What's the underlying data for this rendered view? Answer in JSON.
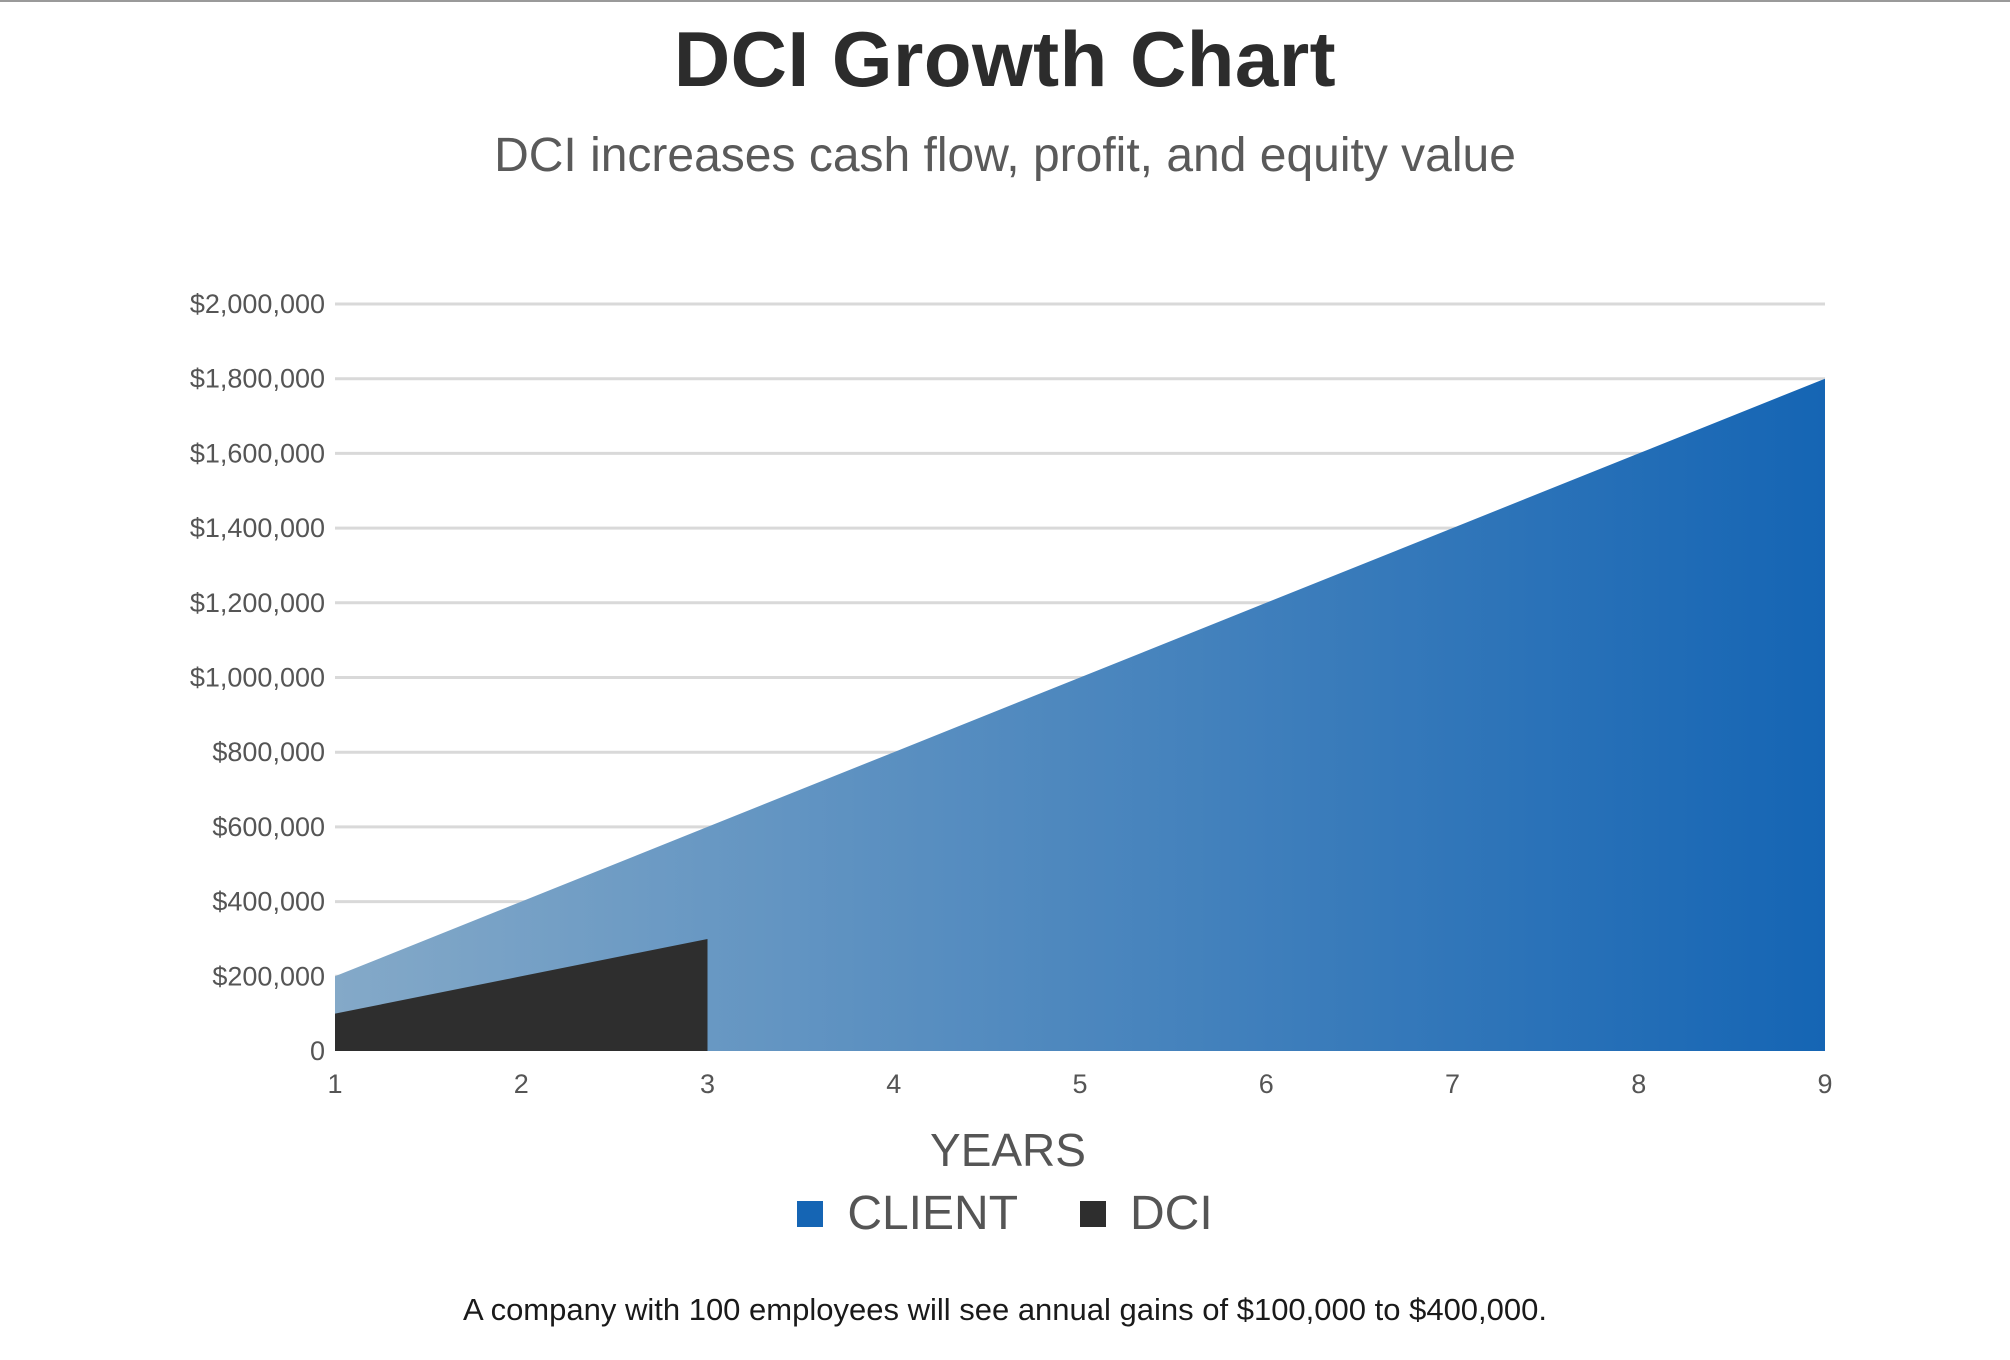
{
  "chart_data": {
    "type": "area",
    "title": "DCI Growth Chart",
    "subtitle": "DCI increases cash flow, profit, and equity value",
    "xlabel": "YEARS",
    "ylabel": "",
    "x": [
      1,
      2,
      3,
      4,
      5,
      6,
      7,
      8,
      9
    ],
    "ylim": [
      0,
      2000000
    ],
    "yticks": [
      0,
      200000,
      400000,
      600000,
      800000,
      1000000,
      1200000,
      1400000,
      1600000,
      1800000,
      2000000
    ],
    "ytick_labels": [
      "0",
      "$200,000",
      "$400,000",
      "$600,000",
      "$800,000",
      "$1,000,000",
      "$1,200,000",
      "$1,400,000",
      "$1,600,000",
      "$1,800,000",
      "$2,000,000"
    ],
    "xtick_labels": [
      "1",
      "2",
      "3",
      "4",
      "5",
      "6",
      "7",
      "8",
      "9"
    ],
    "grid": true,
    "legend_position": "bottom-center",
    "series": [
      {
        "name": "CLIENT",
        "color": "#1565b4",
        "gradient_start_color": "#84a9c8",
        "gradient_end_color": "#1565b4",
        "x": [
          1,
          2,
          3,
          4,
          5,
          6,
          7,
          8,
          9
        ],
        "values": [
          200000,
          400000,
          600000,
          800000,
          1000000,
          1200000,
          1400000,
          1600000,
          1800000
        ]
      },
      {
        "name": "DCI",
        "color": "#2e2e2e",
        "x": [
          1,
          2,
          3
        ],
        "values": [
          100000,
          200000,
          300000
        ]
      }
    ]
  },
  "legend": {
    "items": [
      {
        "label": "CLIENT",
        "color": "#1565b4"
      },
      {
        "label": "DCI",
        "color": "#2e2e2e"
      }
    ]
  },
  "footnote": "A company with 100 employees will see annual gains of $100,000 to $400,000."
}
